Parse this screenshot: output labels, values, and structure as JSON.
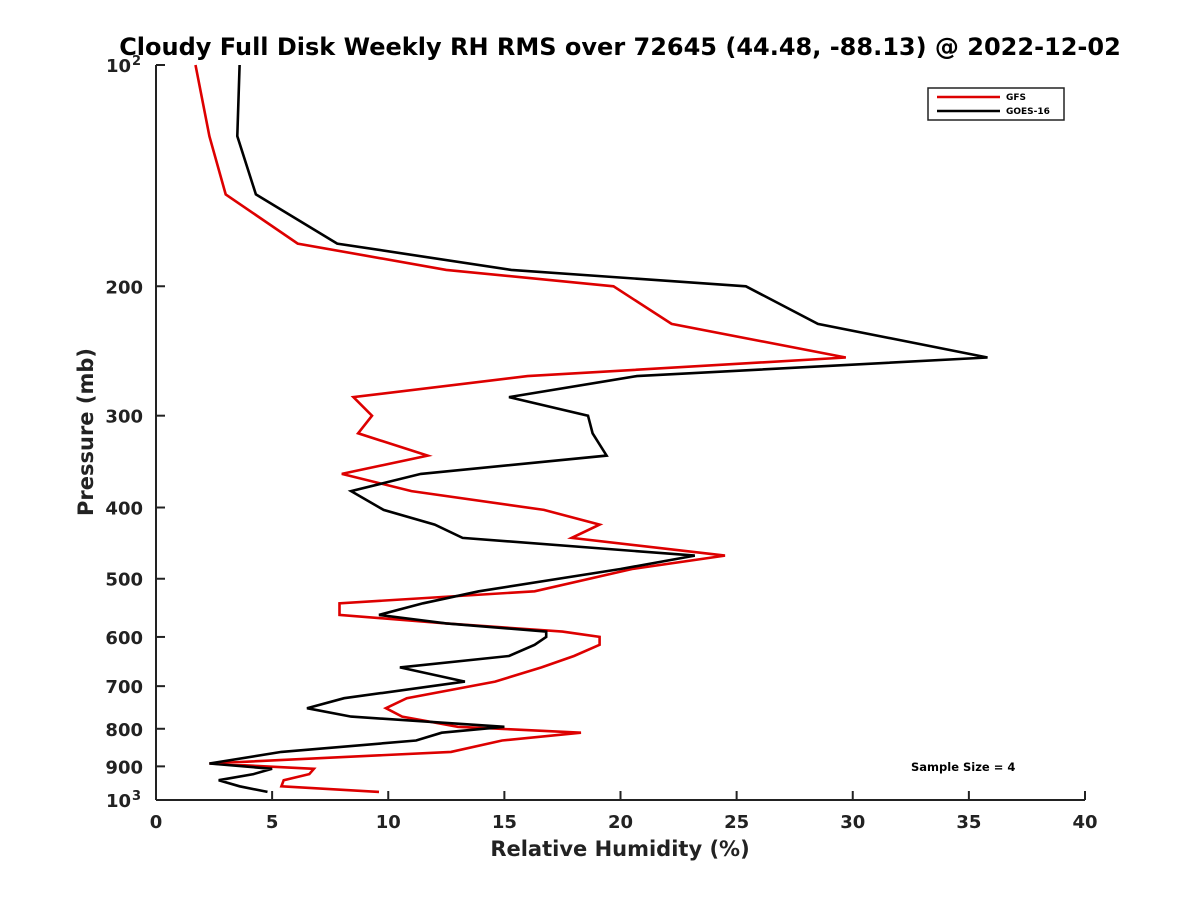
{
  "chart_data": {
    "type": "line",
    "title": "Cloudy Full Disk Weekly RH RMS over 72645 (44.48, -88.13) @ 2022-12-02",
    "xlabel": "Relative Humidity (%)",
    "ylabel": "Pressure (mb)",
    "xlim": [
      0,
      40
    ],
    "ylim": [
      100,
      1000
    ],
    "yscale": "log",
    "y_reversed": true,
    "xticks": [
      {
        "value": 0,
        "label": "0"
      },
      {
        "value": 5,
        "label": "5"
      },
      {
        "value": 10,
        "label": "10"
      },
      {
        "value": 15,
        "label": "15"
      },
      {
        "value": 20,
        "label": "20"
      },
      {
        "value": 25,
        "label": "25"
      },
      {
        "value": 30,
        "label": "30"
      },
      {
        "value": 35,
        "label": "35"
      },
      {
        "value": 40,
        "label": "40"
      }
    ],
    "yticks": [
      {
        "value": 100,
        "label": "10",
        "sup": "2"
      },
      {
        "value": 200,
        "label": "200"
      },
      {
        "value": 300,
        "label": "300"
      },
      {
        "value": 400,
        "label": "400"
      },
      {
        "value": 500,
        "label": "500"
      },
      {
        "value": 600,
        "label": "600"
      },
      {
        "value": 700,
        "label": "700"
      },
      {
        "value": 800,
        "label": "800"
      },
      {
        "value": 900,
        "label": "900"
      },
      {
        "value": 1000,
        "label": "10",
        "sup": "3"
      }
    ],
    "grid": false,
    "legend_position": "top-right",
    "annotation": "Sample Size = 4",
    "series": [
      {
        "name": "GFS",
        "color": "#dd0000",
        "points": [
          [
            1.7,
            100
          ],
          [
            2.3,
            125
          ],
          [
            3.0,
            150
          ],
          [
            6.1,
            175
          ],
          [
            12.5,
            190
          ],
          [
            19.7,
            200
          ],
          [
            22.2,
            225
          ],
          [
            29.7,
            250
          ],
          [
            16.0,
            265
          ],
          [
            8.5,
            283
          ],
          [
            9.3,
            300
          ],
          [
            8.7,
            317
          ],
          [
            11.7,
            340
          ],
          [
            8.0,
            360
          ],
          [
            11.0,
            380
          ],
          [
            16.7,
            403
          ],
          [
            19.1,
            422
          ],
          [
            17.9,
            440
          ],
          [
            24.5,
            465
          ],
          [
            20.5,
            485
          ],
          [
            16.3,
            520
          ],
          [
            7.9,
            540
          ],
          [
            7.9,
            560
          ],
          [
            12.5,
            575
          ],
          [
            17.5,
            590
          ],
          [
            19.1,
            600
          ],
          [
            19.1,
            615
          ],
          [
            18.0,
            637
          ],
          [
            16.6,
            660
          ],
          [
            14.6,
            690
          ],
          [
            10.8,
            727
          ],
          [
            9.9,
            750
          ],
          [
            10.6,
            770
          ],
          [
            13.0,
            795
          ],
          [
            18.3,
            810
          ],
          [
            14.9,
            830
          ],
          [
            12.7,
            860
          ],
          [
            2.3,
            892
          ],
          [
            6.8,
            907
          ],
          [
            6.6,
            922
          ],
          [
            5.5,
            940
          ],
          [
            5.4,
            958
          ],
          [
            9.6,
            975
          ]
        ]
      },
      {
        "name": "GOES-16",
        "color": "#000000",
        "points": [
          [
            3.6,
            100
          ],
          [
            3.5,
            125
          ],
          [
            4.3,
            150
          ],
          [
            7.8,
            175
          ],
          [
            15.3,
            190
          ],
          [
            25.4,
            200
          ],
          [
            28.5,
            225
          ],
          [
            35.8,
            250
          ],
          [
            20.7,
            265
          ],
          [
            15.2,
            283
          ],
          [
            18.6,
            300
          ],
          [
            18.8,
            317
          ],
          [
            19.4,
            340
          ],
          [
            11.4,
            360
          ],
          [
            8.4,
            380
          ],
          [
            9.8,
            403
          ],
          [
            12.0,
            422
          ],
          [
            13.2,
            440
          ],
          [
            23.2,
            465
          ],
          [
            20.0,
            485
          ],
          [
            13.9,
            520
          ],
          [
            11.5,
            540
          ],
          [
            9.6,
            560
          ],
          [
            12.5,
            575
          ],
          [
            16.8,
            590
          ],
          [
            16.8,
            600
          ],
          [
            16.3,
            615
          ],
          [
            15.2,
            637
          ],
          [
            10.5,
            660
          ],
          [
            13.3,
            690
          ],
          [
            8.1,
            727
          ],
          [
            6.5,
            750
          ],
          [
            8.4,
            770
          ],
          [
            15.0,
            795
          ],
          [
            12.3,
            810
          ],
          [
            11.2,
            830
          ],
          [
            5.4,
            860
          ],
          [
            2.3,
            892
          ],
          [
            5.0,
            907
          ],
          [
            4.2,
            922
          ],
          [
            2.7,
            940
          ],
          [
            3.6,
            958
          ],
          [
            4.8,
            975
          ]
        ]
      }
    ]
  }
}
